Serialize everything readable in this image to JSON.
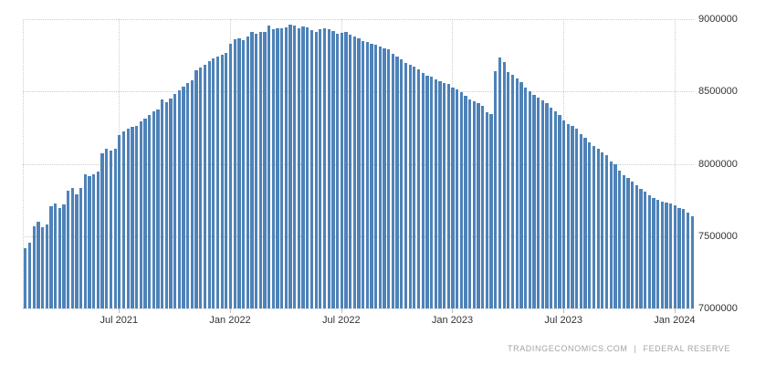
{
  "colors": {
    "bar": "#4e82b8",
    "grid": "#cccccc",
    "axis_text": "#333333",
    "footer_text": "#a3a3a3",
    "background": "#ffffff"
  },
  "footer": {
    "source": "TRADINGECONOMICS.COM",
    "separator": "|",
    "provider": "FEDERAL RESERVE"
  },
  "chart_data": {
    "type": "bar",
    "title": "",
    "xlabel": "",
    "ylabel": "",
    "frequency": "weekly",
    "ylim": [
      7000000,
      9000000
    ],
    "y_ticks": [
      9000000,
      8500000,
      8000000,
      7500000,
      7000000
    ],
    "y_tick_labels": [
      "9000000",
      "8500000",
      "8000000",
      "7500000",
      "7000000"
    ],
    "x_tick_labels": [
      "Jul 2021",
      "Jan 2022",
      "Jul 2022",
      "Jan 2023",
      "Jul 2023",
      "Jan 2024"
    ],
    "x_tick_bar_indices": [
      22,
      48,
      74,
      100,
      126,
      152
    ],
    "grid": "dotted",
    "legend": "none",
    "values": [
      7418000,
      7456000,
      7570000,
      7597000,
      7560000,
      7580000,
      7707000,
      7723000,
      7692000,
      7717000,
      7812000,
      7833000,
      7787000,
      7831000,
      7930000,
      7913000,
      7928000,
      7949000,
      8071000,
      8102000,
      8089000,
      8106000,
      8197000,
      8227000,
      8240000,
      8257000,
      8262000,
      8293000,
      8312000,
      8339000,
      8361000,
      8373000,
      8448000,
      8428000,
      8452000,
      8480000,
      8508000,
      8531000,
      8558000,
      8575000,
      8648000,
      8664000,
      8683000,
      8710000,
      8727000,
      8740000,
      8757000,
      8766000,
      8832000,
      8860000,
      8867000,
      8852000,
      8878000,
      8911000,
      8896000,
      8911000,
      8910000,
      8954000,
      8932000,
      8939000,
      8937000,
      8943000,
      8965000,
      8955000,
      8939000,
      8951000,
      8943000,
      8924000,
      8914000,
      8932000,
      8934000,
      8928000,
      8920000,
      8899000,
      8907000,
      8910000,
      8890000,
      8880000,
      8869000,
      8851000,
      8843000,
      8832000,
      8826000,
      8812000,
      8801000,
      8793000,
      8759000,
      8740000,
      8721000,
      8700000,
      8684000,
      8670000,
      8650000,
      8630000,
      8612000,
      8601000,
      8585000,
      8570000,
      8560000,
      8551000,
      8530000,
      8516000,
      8498000,
      8470000,
      8443000,
      8433000,
      8420000,
      8398000,
      8356000,
      8342000,
      8639000,
      8734000,
      8706000,
      8632000,
      8614000,
      8593000,
      8563000,
      8530000,
      8503000,
      8477000,
      8456000,
      8440000,
      8419000,
      8390000,
      8361000,
      8340000,
      8298000,
      8275000,
      8264000,
      8243000,
      8208000,
      8179000,
      8150000,
      8122000,
      8102000,
      8080000,
      8057000,
      8016000,
      7995000,
      7953000,
      7923000,
      7900000,
      7875000,
      7850000,
      7826000,
      7805000,
      7785000,
      7765000,
      7748000,
      7736000,
      7729000,
      7724000,
      7712000,
      7696000,
      7689000,
      7660000,
      7639000
    ]
  }
}
